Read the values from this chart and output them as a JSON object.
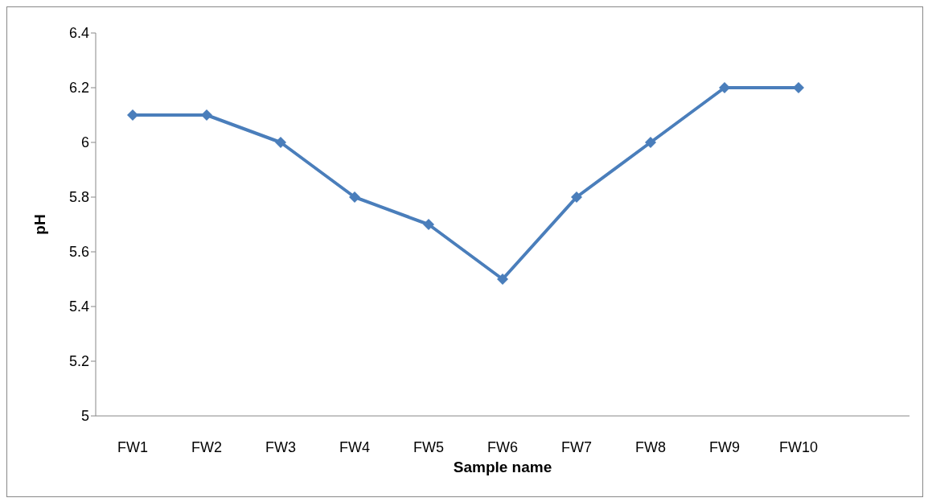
{
  "chart_data": {
    "type": "line",
    "xlabel": "Sample name",
    "ylabel": "pH",
    "categories": [
      "FW1",
      "FW2",
      "FW3",
      "FW4",
      "FW5",
      "FW6",
      "FW7",
      "FW8",
      "FW9",
      "FW10",
      null
    ],
    "series": [
      {
        "color": "#4a7ebb",
        "values": [
          6.1,
          6.1,
          6.0,
          5.8,
          5.7,
          5.5,
          5.8,
          6.0,
          6.2,
          6.2,
          null
        ]
      }
    ],
    "ylim": [
      5,
      6.4
    ],
    "yticks": [
      5,
      5.2,
      5.4,
      5.6,
      5.8,
      6,
      6.2,
      6.4
    ],
    "marker": "diamond",
    "line_style": "solid"
  }
}
